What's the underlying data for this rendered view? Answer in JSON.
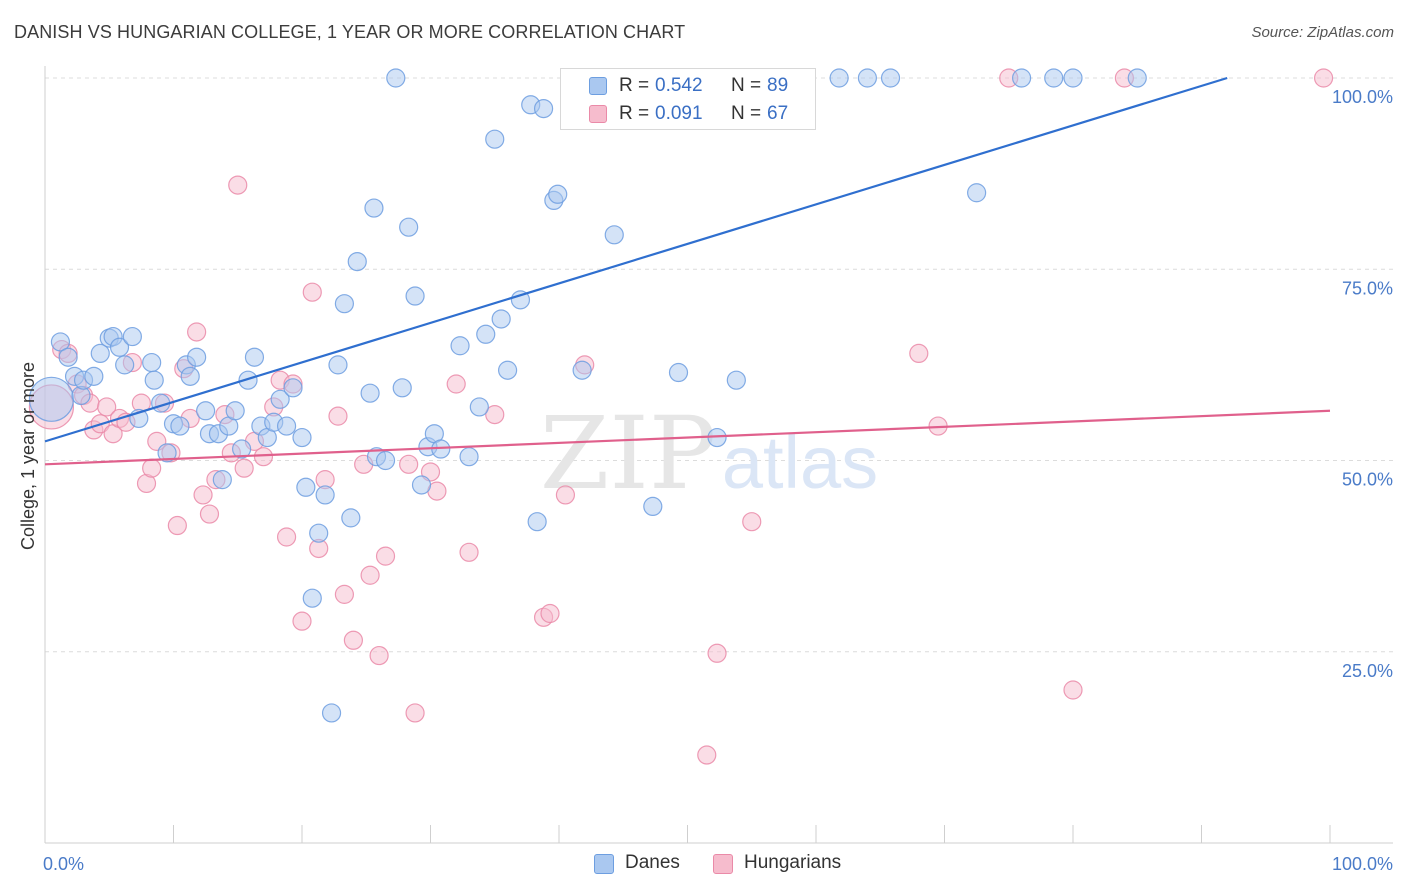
{
  "title": "DANISH VS HUNGARIAN COLLEGE, 1 YEAR OR MORE CORRELATION CHART",
  "source": "Source: ZipAtlas.com",
  "watermark": {
    "zip": "ZIP",
    "atlas": "atlas"
  },
  "colors": {
    "danes_fill": "#aac8f0",
    "danes_stroke": "#6d9ee0",
    "danes_line": "#2f6fcf",
    "hungarians_fill": "#f6bccd",
    "hungarians_stroke": "#ea8aa8",
    "hungarians_line": "#e0608c",
    "axis_label": "#4a7bc8",
    "grid": "#dcdcdc"
  },
  "legend": {
    "danes": {
      "r_label": "R =",
      "r_value": "0.542",
      "n_label": "N =",
      "n_value": "89"
    },
    "hungarians": {
      "r_label": "R =",
      "r_value": "0.091",
      "n_label": "N =",
      "n_value": "67"
    }
  },
  "chart_data": {
    "type": "scatter",
    "title": "DANISH VS HUNGARIAN COLLEGE, 1 YEAR OR MORE CORRELATION CHART",
    "xlabel": "",
    "ylabel": "College, 1 year or more",
    "xlim": [
      0,
      100
    ],
    "ylim": [
      0,
      100
    ],
    "x_tick_labels": [
      "0.0%",
      "100.0%"
    ],
    "y_ticks": [
      25,
      50,
      75,
      100
    ],
    "y_tick_labels": [
      "25.0%",
      "50.0%",
      "75.0%",
      "100.0%"
    ],
    "grid": true,
    "legend_position": "top-center",
    "series": [
      {
        "name": "Danes",
        "r": 0.542,
        "n": 89,
        "trend": {
          "x": [
            0,
            92
          ],
          "y": [
            52.5,
            100
          ]
        },
        "points": [
          [
            0.5,
            58.0,
            "lg"
          ],
          [
            1.2,
            65.5
          ],
          [
            1.8,
            63.5
          ],
          [
            2.3,
            61.0
          ],
          [
            2.8,
            58.5
          ],
          [
            3.0,
            60.5
          ],
          [
            3.8,
            61.0
          ],
          [
            4.3,
            64.0
          ],
          [
            5.0,
            66.0
          ],
          [
            5.3,
            66.2
          ],
          [
            5.8,
            64.8
          ],
          [
            6.2,
            62.5
          ],
          [
            6.8,
            66.2
          ],
          [
            7.3,
            55.5
          ],
          [
            8.3,
            62.8
          ],
          [
            8.5,
            60.5
          ],
          [
            9.0,
            57.5
          ],
          [
            9.5,
            51.0
          ],
          [
            10.0,
            54.8
          ],
          [
            10.5,
            54.5
          ],
          [
            11.0,
            62.5
          ],
          [
            11.3,
            61.0
          ],
          [
            11.8,
            63.5
          ],
          [
            12.5,
            56.5
          ],
          [
            12.8,
            53.5
          ],
          [
            13.5,
            53.5
          ],
          [
            13.8,
            47.5
          ],
          [
            14.3,
            54.5
          ],
          [
            14.8,
            56.5
          ],
          [
            15.3,
            51.5
          ],
          [
            15.8,
            60.5
          ],
          [
            16.3,
            63.5
          ],
          [
            16.8,
            54.5
          ],
          [
            17.3,
            53.0
          ],
          [
            17.8,
            55.0
          ],
          [
            18.3,
            58.0
          ],
          [
            18.8,
            54.5
          ],
          [
            19.3,
            59.5
          ],
          [
            20.0,
            53.0
          ],
          [
            20.3,
            46.5
          ],
          [
            20.8,
            32.0
          ],
          [
            21.3,
            40.5
          ],
          [
            21.8,
            45.5
          ],
          [
            22.3,
            17.0
          ],
          [
            22.8,
            62.5
          ],
          [
            23.3,
            70.5
          ],
          [
            23.8,
            42.5
          ],
          [
            24.3,
            76.0
          ],
          [
            25.3,
            58.8
          ],
          [
            25.8,
            50.5
          ],
          [
            25.6,
            83.0
          ],
          [
            26.5,
            50.0
          ],
          [
            27.3,
            100.0
          ],
          [
            27.8,
            59.5
          ],
          [
            28.3,
            80.5
          ],
          [
            28.8,
            71.5
          ],
          [
            29.3,
            46.8
          ],
          [
            29.8,
            51.8
          ],
          [
            30.3,
            53.5
          ],
          [
            30.8,
            51.5
          ],
          [
            32.3,
            65.0
          ],
          [
            33.0,
            50.5
          ],
          [
            33.8,
            57.0
          ],
          [
            34.3,
            66.5
          ],
          [
            35.0,
            92.0
          ],
          [
            35.5,
            68.5
          ],
          [
            36.0,
            61.8
          ],
          [
            37.0,
            71.0
          ],
          [
            37.8,
            96.5
          ],
          [
            38.3,
            42.0
          ],
          [
            38.8,
            96.0
          ],
          [
            39.6,
            84.0
          ],
          [
            39.9,
            84.8
          ],
          [
            41.8,
            61.8
          ],
          [
            44.3,
            79.5
          ],
          [
            45.3,
            100.0
          ],
          [
            47.3,
            44.0
          ],
          [
            49.3,
            61.5
          ],
          [
            52.3,
            53.0
          ],
          [
            53.8,
            60.5
          ],
          [
            56.8,
            100.0
          ],
          [
            61.8,
            100.0
          ],
          [
            64.0,
            100.0
          ],
          [
            65.8,
            100.0
          ],
          [
            72.5,
            85.0
          ],
          [
            76.0,
            100.0
          ],
          [
            78.5,
            100.0
          ],
          [
            80.0,
            100.0
          ],
          [
            85.0,
            100.0
          ]
        ]
      },
      {
        "name": "Hungarians",
        "r": 0.091,
        "n": 67,
        "trend": {
          "x": [
            0,
            100
          ],
          "y": [
            49.5,
            56.5
          ]
        },
        "points": [
          [
            0.5,
            57.0,
            "lg"
          ],
          [
            1.3,
            64.5
          ],
          [
            1.8,
            64.0
          ],
          [
            2.5,
            60.0
          ],
          [
            3.0,
            58.5
          ],
          [
            3.5,
            57.5
          ],
          [
            3.8,
            54.0
          ],
          [
            4.3,
            54.8
          ],
          [
            4.8,
            57.0
          ],
          [
            5.3,
            53.5
          ],
          [
            5.8,
            55.5
          ],
          [
            6.3,
            55.0
          ],
          [
            6.8,
            62.8
          ],
          [
            7.5,
            57.5
          ],
          [
            7.9,
            47.0
          ],
          [
            8.3,
            49.0
          ],
          [
            8.7,
            52.5
          ],
          [
            9.3,
            57.5
          ],
          [
            9.8,
            51.0
          ],
          [
            10.3,
            41.5
          ],
          [
            10.8,
            62.0
          ],
          [
            11.3,
            55.5
          ],
          [
            11.8,
            66.8
          ],
          [
            12.3,
            45.5
          ],
          [
            12.8,
            43.0
          ],
          [
            13.3,
            47.5
          ],
          [
            14.0,
            56.0
          ],
          [
            14.5,
            51.0
          ],
          [
            15.0,
            86.0
          ],
          [
            15.5,
            49.0
          ],
          [
            16.3,
            52.5
          ],
          [
            17.0,
            50.5
          ],
          [
            17.8,
            57.0
          ],
          [
            18.3,
            60.5
          ],
          [
            18.8,
            40.0
          ],
          [
            19.3,
            60.0
          ],
          [
            20.0,
            29.0
          ],
          [
            20.8,
            72.0
          ],
          [
            21.3,
            38.5
          ],
          [
            21.8,
            47.5
          ],
          [
            22.8,
            55.8
          ],
          [
            23.3,
            32.5
          ],
          [
            24.0,
            26.5
          ],
          [
            24.8,
            49.5
          ],
          [
            25.3,
            35.0
          ],
          [
            26.0,
            24.5
          ],
          [
            26.5,
            37.5
          ],
          [
            28.3,
            49.5
          ],
          [
            28.8,
            17.0
          ],
          [
            30.0,
            48.5
          ],
          [
            30.5,
            46.0
          ],
          [
            32.0,
            60.0
          ],
          [
            33.0,
            38.0
          ],
          [
            35.0,
            56.0
          ],
          [
            38.8,
            29.5
          ],
          [
            39.3,
            30.0
          ],
          [
            40.5,
            45.5
          ],
          [
            42.0,
            62.5
          ],
          [
            51.5,
            11.5
          ],
          [
            52.3,
            24.8
          ],
          [
            55.0,
            42.0
          ],
          [
            68.0,
            64.0
          ],
          [
            69.5,
            54.5
          ],
          [
            75.0,
            100.0
          ],
          [
            80.0,
            20.0
          ],
          [
            84.0,
            100.0
          ],
          [
            99.5,
            100.0
          ]
        ]
      }
    ]
  },
  "bottom_legend": [
    "Danes",
    "Hungarians"
  ]
}
